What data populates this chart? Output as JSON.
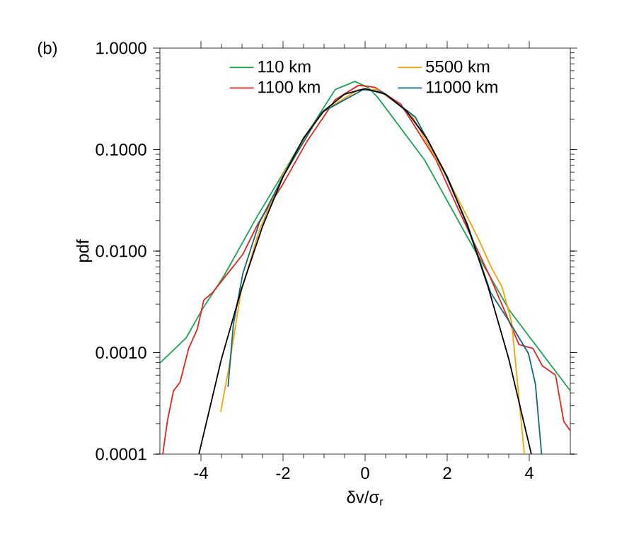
{
  "chart_data": {
    "type": "line",
    "xlabel": "δv/σ$_{r}$",
    "ylabel": "pdf",
    "annotations": [
      "(b)"
    ],
    "xlim": [
      -5,
      5
    ],
    "ylim": [
      0.0001,
      1
    ],
    "log": "y",
    "legend": "top",
    "grid": false,
    "xticks": [
      -4,
      -2,
      0,
      2,
      4
    ],
    "yticks": [
      {
        "value": 0.0001,
        "label": "0.0001"
      },
      {
        "value": 0.001,
        "label": "0.0010"
      },
      {
        "value": 0.01,
        "label": "0.0100"
      },
      {
        "value": 0.1,
        "label": "0.1000"
      },
      {
        "value": 1,
        "label": "1.0000"
      }
    ],
    "series": [
      {
        "name": "110 km",
        "color": "#1aa555",
        "x": [
          -5,
          -4.36,
          -3.96,
          -3.44,
          -2.63,
          -2.11,
          -1.54,
          -0.73,
          -0.25,
          0.07,
          0.3,
          1.45,
          2.48,
          3.52,
          5
        ],
        "values": [
          0.00079,
          0.0014,
          0.0027,
          0.0057,
          0.022,
          0.049,
          0.12,
          0.39,
          0.47,
          0.41,
          0.33,
          0.079,
          0.014,
          0.0026,
          0.00042
        ]
      },
      {
        "name": "1100 km",
        "color": "#e8231f",
        "x": [
          -4.93,
          -4.82,
          -4.67,
          -4.51,
          -4.3,
          -4.09,
          -3.93,
          -3.72,
          -3.44,
          -2.98,
          -2.6,
          -2.0,
          -1.42,
          -0.73,
          -0.16,
          0.07,
          0.24,
          0.87,
          1.73,
          2.25,
          3.06,
          3.75,
          4.09,
          4.32,
          4.64,
          4.84,
          5
        ],
        "values": [
          0.0001,
          0.00021,
          0.00042,
          0.00051,
          0.0011,
          0.0017,
          0.0033,
          0.0039,
          0.0054,
          0.0093,
          0.019,
          0.046,
          0.12,
          0.31,
          0.43,
          0.42,
          0.41,
          0.28,
          0.079,
          0.027,
          0.0054,
          0.0012,
          0.0011,
          0.00074,
          0.0006,
          0.00021,
          0.00017
        ]
      },
      {
        "name": "5500 km",
        "color": "#f5a300",
        "x": [
          -3.52,
          -3.32,
          -3.03,
          -2.58,
          -2.0,
          -1.08,
          -0.16,
          0.3,
          1.1,
          2.02,
          2.77,
          3.06,
          3.34,
          3.57,
          3.88
        ],
        "values": [
          0.00026,
          0.00071,
          0.0039,
          0.016,
          0.057,
          0.23,
          0.39,
          0.39,
          0.23,
          0.051,
          0.013,
          0.0071,
          0.0044,
          0.002,
          0.0001
        ]
      },
      {
        "name": "11000 km",
        "color": "#0f6a80",
        "x": [
          -3.34,
          -3.21,
          -2.98,
          -2.58,
          -2.0,
          -1.08,
          -0.05,
          0.41,
          1.22,
          1.91,
          2.48,
          3.06,
          3.52,
          3.98,
          4.15,
          4.3
        ],
        "values": [
          0.00046,
          0.0019,
          0.006,
          0.019,
          0.054,
          0.23,
          0.39,
          0.37,
          0.21,
          0.063,
          0.019,
          0.0039,
          0.002,
          0.00098,
          0.00049,
          0.0001
        ]
      },
      {
        "color": "#000000",
        "x": [
          -4.05,
          -3.5,
          -3.0,
          -2.5,
          -2.0,
          -1.5,
          -1.0,
          -0.5,
          0,
          0.5,
          1.0,
          1.5,
          2.0,
          2.5,
          3.0,
          3.5,
          4.05
        ],
        "values": [
          0.0001,
          0.00087,
          0.0044,
          0.0175,
          0.054,
          0.13,
          0.242,
          0.352,
          0.399,
          0.352,
          0.242,
          0.13,
          0.054,
          0.0175,
          0.0044,
          0.00087,
          0.0001
        ]
      }
    ]
  }
}
